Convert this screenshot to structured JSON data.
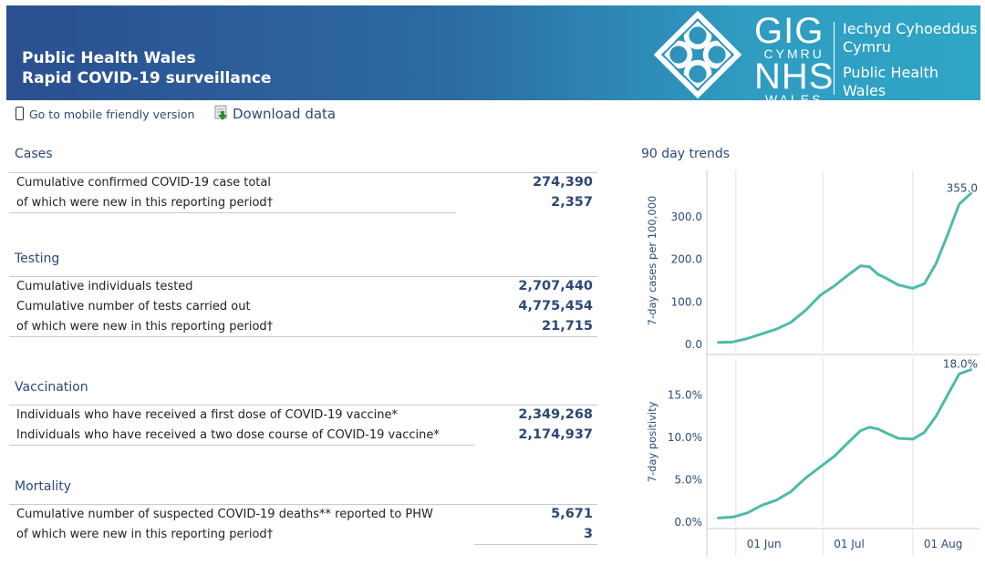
{
  "header": {
    "title_line1": "Public Health Wales",
    "title_line2": "Rapid COVID-19 surveillance",
    "logo": {
      "gig": "GIG",
      "cymru": "CYMRU",
      "nhs": "NHS",
      "wales": "WALES",
      "welsh_line1": "Iechyd Cyhoeddus",
      "welsh_line2": "Cymru",
      "english_line1": "Public Health",
      "english_line2": "Wales"
    },
    "colors": {
      "gradient_start": "#2b4f90",
      "gradient_end": "#30a6c6"
    }
  },
  "links": {
    "mobile": "Go to mobile friendly version",
    "download": "Download data"
  },
  "sections": {
    "cases": {
      "title": "Cases",
      "rows": [
        {
          "label": "Cumulative confirmed COVID-19 case total",
          "value": "274,390"
        },
        {
          "label": "of which were new in this reporting period†",
          "value": "2,357"
        }
      ]
    },
    "testing": {
      "title": "Testing",
      "rows": [
        {
          "label": "Cumulative individuals tested",
          "value": "2,707,440"
        },
        {
          "label": "Cumulative number of tests carried out",
          "value": "4,775,454"
        },
        {
          "label": "of which were new in this reporting period†",
          "value": "21,715"
        }
      ]
    },
    "vaccination": {
      "title": "Vaccination",
      "rows": [
        {
          "label": "Individuals who have received a first dose of COVID-19 vaccine*",
          "value": "2,349,268"
        },
        {
          "label": "Individuals who have received a two dose course of COVID-19 vaccine*",
          "value": "2,174,937"
        }
      ]
    },
    "mortality": {
      "title": "Mortality",
      "rows": [
        {
          "label": "Cumulative number of suspected COVID-19 deaths** reported to PHW",
          "value": "5,671"
        },
        {
          "label": "of which were new in this reporting period†",
          "value": "3"
        }
      ]
    }
  },
  "trends": {
    "title": "90 day trends",
    "line_color": "#4dbba7"
  },
  "chart_data": [
    {
      "type": "line",
      "ylabel": "7-day cases per 100,000",
      "xlabel": "",
      "ylim": [
        0,
        360
      ],
      "yticks": [
        0,
        100,
        200,
        300
      ],
      "ytick_labels": [
        "0.0",
        "100.0",
        "200.0",
        "300.0"
      ],
      "xticks": [
        "2021-06-01",
        "2021-07-01",
        "2021-08-01"
      ],
      "xtick_labels": [
        "01 Jun",
        "01 Jul",
        "01 Aug"
      ],
      "xlim": [
        "2021-05-22",
        "2021-08-24"
      ],
      "end_label": "355.0",
      "grid": "vertical",
      "x": [
        "2021-05-26",
        "2021-05-31",
        "2021-06-05",
        "2021-06-10",
        "2021-06-15",
        "2021-06-20",
        "2021-06-25",
        "2021-06-30",
        "2021-07-05",
        "2021-07-10",
        "2021-07-14",
        "2021-07-17",
        "2021-07-20",
        "2021-07-23",
        "2021-07-27",
        "2021-08-01",
        "2021-08-05",
        "2021-08-09",
        "2021-08-13",
        "2021-08-17",
        "2021-08-21"
      ],
      "series": [
        {
          "values": [
            5,
            6,
            14,
            25,
            36,
            52,
            80,
            115,
            138,
            165,
            185,
            183,
            165,
            155,
            140,
            132,
            143,
            190,
            258,
            330,
            355
          ]
        }
      ]
    },
    {
      "type": "line",
      "ylabel": "7-day positivity",
      "xlabel": "",
      "ylim": [
        0,
        18.5
      ],
      "yticks": [
        0,
        5,
        10,
        15
      ],
      "ytick_labels": [
        "0.0%",
        "5.0%",
        "10.0%",
        "15.0%"
      ],
      "xticks": [
        "2021-06-01",
        "2021-07-01",
        "2021-08-01"
      ],
      "xtick_labels": [
        "01 Jun",
        "01 Jul",
        "01 Aug"
      ],
      "xlim": [
        "2021-05-22",
        "2021-08-24"
      ],
      "end_label": "18.0%",
      "grid": "vertical",
      "x": [
        "2021-05-26",
        "2021-05-31",
        "2021-06-05",
        "2021-06-10",
        "2021-06-15",
        "2021-06-20",
        "2021-06-25",
        "2021-06-30",
        "2021-07-05",
        "2021-07-10",
        "2021-07-14",
        "2021-07-17",
        "2021-07-20",
        "2021-07-23",
        "2021-07-27",
        "2021-08-01",
        "2021-08-05",
        "2021-08-09",
        "2021-08-13",
        "2021-08-17",
        "2021-08-21"
      ],
      "series": [
        {
          "values": [
            0.5,
            0.6,
            1.1,
            2.0,
            2.6,
            3.6,
            5.2,
            6.5,
            7.8,
            9.5,
            10.8,
            11.2,
            11.0,
            10.5,
            9.9,
            9.8,
            10.6,
            12.5,
            15.0,
            17.5,
            18.0
          ]
        }
      ]
    }
  ]
}
